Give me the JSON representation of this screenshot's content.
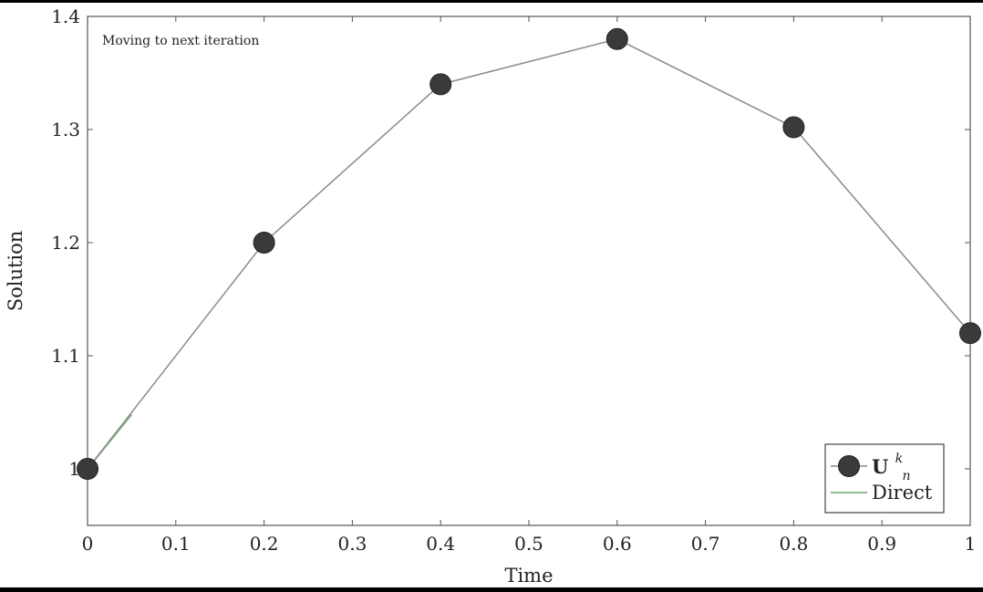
{
  "chart_data": {
    "type": "line",
    "xlabel": "Time",
    "ylabel": "Solution",
    "xlim": [
      0,
      1
    ],
    "ylim": [
      0.95,
      1.4
    ],
    "x_ticks": [
      0,
      0.1,
      0.2,
      0.3,
      0.4,
      0.5,
      0.6,
      0.7,
      0.8,
      0.9,
      1
    ],
    "x_tick_labels": [
      "0",
      "0.1",
      "0.2",
      "0.3",
      "0.4",
      "0.5",
      "0.6",
      "0.7",
      "0.8",
      "0.9",
      "1"
    ],
    "y_ticks": [
      1.0,
      1.1,
      1.2,
      1.3,
      1.4
    ],
    "y_tick_labels": [
      "1",
      "1.1",
      "1.2",
      "1.3",
      "1.4"
    ],
    "annotation": "Moving to next iteration",
    "legend_position": "bottom-right",
    "series": [
      {
        "name": "U",
        "name_sup": "k",
        "name_sub": "n",
        "color": "#3a3a3a",
        "line_color": "#8a8a8a",
        "marker": "circle",
        "x": [
          0,
          0.2,
          0.4,
          0.6,
          0.8,
          1.0
        ],
        "y": [
          1.0,
          1.2,
          1.34,
          1.38,
          1.302,
          1.12
        ]
      },
      {
        "name": "Direct",
        "color": "#7fb57f",
        "x": [
          0,
          0.05
        ],
        "y": [
          1.0,
          1.048
        ]
      }
    ]
  }
}
